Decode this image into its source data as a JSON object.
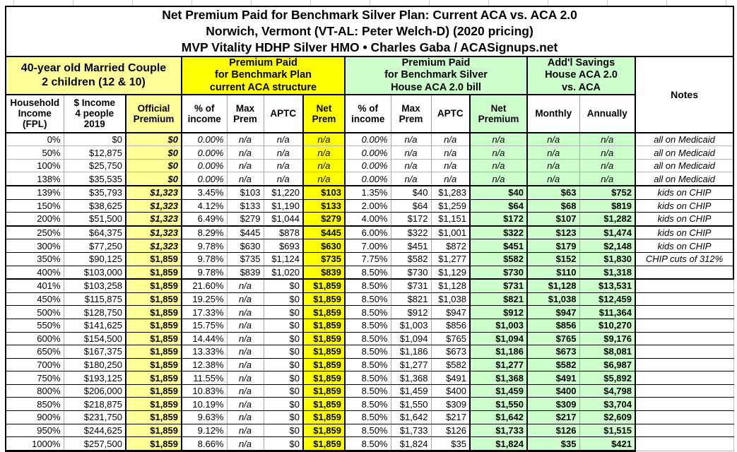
{
  "title": {
    "line1": "Net Premium Paid for Benchmark Silver Plan: Current ACA vs. ACA 2.0",
    "line2": "Norwich, Vermont (VT-AL: Peter Welch-D) (2020 pricing)",
    "line3": "MVP Vitality HDHP Silver HMO • Charles Gaba / ACASignups.net"
  },
  "groups": {
    "household": [
      "40-year old Married Couple",
      "2 children (12 & 10)"
    ],
    "current_aca": [
      "Premium Paid",
      "for Benchmark Plan",
      "current ACA structure"
    ],
    "aca20": [
      "Premium Paid",
      "for Benchmark Silver",
      "House ACA 2.0 bill"
    ],
    "savings": [
      "Add'l Savings",
      "House ACA 2.0",
      "vs. ACA"
    ],
    "notes_label": "Notes"
  },
  "colors": {
    "light_yellow": "#FFFF99",
    "bright_yellow": "#FFFF00",
    "light_green": "#CCFFCC",
    "border_black": "#000000",
    "grid_gray": "#A8A8A8"
  },
  "chart_data": {
    "type": "table",
    "title": "Net Premium Paid for Benchmark Silver Plan: Current ACA vs. ACA 2.0",
    "columns": [
      {
        "id": "fpl",
        "label": [
          "Household",
          "Income",
          "(FPL)"
        ]
      },
      {
        "id": "income",
        "label": [
          "$ Income",
          "4 people",
          "2019"
        ]
      },
      {
        "id": "official_premium",
        "label": [
          "Official",
          "Premium"
        ]
      },
      {
        "id": "aca_pct_income",
        "label": [
          "% of",
          "income"
        ]
      },
      {
        "id": "aca_max_prem",
        "label": [
          "Max",
          "Prem"
        ]
      },
      {
        "id": "aca_aptc",
        "label": [
          "APTC"
        ]
      },
      {
        "id": "aca_net_prem",
        "label": [
          "Net",
          "Prem"
        ]
      },
      {
        "id": "aca2_pct_income",
        "label": [
          "% of",
          "income"
        ]
      },
      {
        "id": "aca2_max_prem",
        "label": [
          "Max",
          "Prem"
        ]
      },
      {
        "id": "aca2_aptc",
        "label": [
          "APTC"
        ]
      },
      {
        "id": "aca2_net_premium",
        "label": [
          "Net",
          "Premium"
        ]
      },
      {
        "id": "savings_monthly",
        "label": [
          "Monthly"
        ]
      },
      {
        "id": "savings_annually",
        "label": [
          "Annually"
        ]
      },
      {
        "id": "notes",
        "label": [
          "Notes"
        ]
      }
    ],
    "row_fields": [
      "fpl",
      "income",
      "official_premium",
      "aca_pct_income",
      "aca_max_prem",
      "aca_aptc",
      "aca_net_prem",
      "aca2_pct_income",
      "aca2_max_prem",
      "aca2_aptc",
      "aca2_net_premium",
      "savings_monthly",
      "savings_annually",
      "notes"
    ],
    "rows": [
      [
        "0%",
        "$0",
        "$0",
        "0.00%",
        "n/a",
        "n/a",
        "n/a",
        "0.00%",
        "n/a",
        "n/a",
        "n/a",
        "n/a",
        "n/a",
        "all on Medicaid"
      ],
      [
        "50%",
        "$12,875",
        "$0",
        "0.00%",
        "n/a",
        "n/a",
        "n/a",
        "0.00%",
        "n/a",
        "n/a",
        "n/a",
        "n/a",
        "n/a",
        "all on Medicaid"
      ],
      [
        "100%",
        "$25,750",
        "$0",
        "0.00%",
        "n/a",
        "n/a",
        "n/a",
        "0.00%",
        "n/a",
        "n/a",
        "n/a",
        "n/a",
        "n/a",
        "all on Medicaid"
      ],
      [
        "138%",
        "$35,535",
        "$0",
        "0.00%",
        "n/a",
        "n/a",
        "n/a",
        "0.00%",
        "n/a",
        "n/a",
        "n/a",
        "n/a",
        "n/a",
        "all on Medicaid"
      ],
      [
        "139%",
        "$35,793",
        "$1,323",
        "3.45%",
        "$103",
        "$1,220",
        "$103",
        "1.35%",
        "$40",
        "$1,283",
        "$40",
        "$63",
        "$752",
        "kids on CHIP"
      ],
      [
        "150%",
        "$38,625",
        "$1,323",
        "4.12%",
        "$133",
        "$1,190",
        "$133",
        "2.00%",
        "$64",
        "$1,259",
        "$64",
        "$68",
        "$819",
        "kids on CHIP"
      ],
      [
        "200%",
        "$51,500",
        "$1,323",
        "6.49%",
        "$279",
        "$1,044",
        "$279",
        "4.00%",
        "$172",
        "$1,151",
        "$172",
        "$107",
        "$1,282",
        "kids on CHIP"
      ],
      [
        "250%",
        "$64,375",
        "$1,323",
        "8.29%",
        "$445",
        "$878",
        "$445",
        "6.00%",
        "$322",
        "$1,001",
        "$322",
        "$123",
        "$1,474",
        "kids on CHIP"
      ],
      [
        "300%",
        "$77,250",
        "$1,323",
        "9.78%",
        "$630",
        "$693",
        "$630",
        "7.00%",
        "$451",
        "$872",
        "$451",
        "$179",
        "$2,148",
        "kids on CHIP"
      ],
      [
        "350%",
        "$90,125",
        "$1,859",
        "9.78%",
        "$735",
        "$1,124",
        "$735",
        "7.75%",
        "$582",
        "$1,277",
        "$582",
        "$152",
        "$1,830",
        "CHIP cuts of 312%"
      ],
      [
        "400%",
        "$103,000",
        "$1,859",
        "9.78%",
        "$839",
        "$1,020",
        "$839",
        "8.50%",
        "$730",
        "$1,129",
        "$730",
        "$110",
        "$1,318",
        ""
      ],
      [
        "401%",
        "$103,258",
        "$1,859",
        "21.60%",
        "n/a",
        "$0",
        "$1,859",
        "8.50%",
        "$731",
        "$1,128",
        "$731",
        "$1,128",
        "$13,531",
        ""
      ],
      [
        "450%",
        "$115,875",
        "$1,859",
        "19.25%",
        "n/a",
        "$0",
        "$1,859",
        "8.50%",
        "$821",
        "$1,038",
        "$821",
        "$1,038",
        "$12,459",
        ""
      ],
      [
        "500%",
        "$128,750",
        "$1,859",
        "17.33%",
        "n/a",
        "$0",
        "$1,859",
        "8.50%",
        "$912",
        "$947",
        "$912",
        "$947",
        "$11,364",
        ""
      ],
      [
        "550%",
        "$141,625",
        "$1,859",
        "15.75%",
        "n/a",
        "$0",
        "$1,859",
        "8.50%",
        "$1,003",
        "$856",
        "$1,003",
        "$856",
        "$10,270",
        ""
      ],
      [
        "600%",
        "$154,500",
        "$1,859",
        "14.44%",
        "n/a",
        "$0",
        "$1,859",
        "8.50%",
        "$1,094",
        "$765",
        "$1,094",
        "$765",
        "$9,176",
        ""
      ],
      [
        "650%",
        "$167,375",
        "$1,859",
        "13.33%",
        "n/a",
        "$0",
        "$1,859",
        "8.50%",
        "$1,186",
        "$673",
        "$1,186",
        "$673",
        "$8,081",
        ""
      ],
      [
        "700%",
        "$180,250",
        "$1,859",
        "12.38%",
        "n/a",
        "$0",
        "$1,859",
        "8.50%",
        "$1,277",
        "$582",
        "$1,277",
        "$582",
        "$6,987",
        ""
      ],
      [
        "750%",
        "$193,125",
        "$1,859",
        "11.55%",
        "n/a",
        "$0",
        "$1,859",
        "8.50%",
        "$1,368",
        "$491",
        "$1,368",
        "$491",
        "$5,892",
        ""
      ],
      [
        "800%",
        "$206,000",
        "$1,859",
        "10.83%",
        "n/a",
        "$0",
        "$1,859",
        "8.50%",
        "$1,459",
        "$400",
        "$1,459",
        "$400",
        "$4,798",
        ""
      ],
      [
        "850%",
        "$218,875",
        "$1,859",
        "10.19%",
        "n/a",
        "$0",
        "$1,859",
        "8.50%",
        "$1,550",
        "$309",
        "$1,550",
        "$309",
        "$3,704",
        ""
      ],
      [
        "900%",
        "$231,750",
        "$1,859",
        "9.63%",
        "n/a",
        "$0",
        "$1,859",
        "8.50%",
        "$1,642",
        "$217",
        "$1,642",
        "$217",
        "$2,609",
        ""
      ],
      [
        "950%",
        "$244,625",
        "$1,859",
        "9.12%",
        "n/a",
        "$0",
        "$1,859",
        "8.50%",
        "$1,733",
        "$126",
        "$1,733",
        "$126",
        "$1,515",
        ""
      ],
      [
        "1000%",
        "$257,500",
        "$1,859",
        "8.66%",
        "n/a",
        "$0",
        "$1,859",
        "8.50%",
        "$1,824",
        "$35",
        "$1,824",
        "$35",
        "$421",
        ""
      ]
    ],
    "styles": {
      "medicaid_rows": [
        0,
        1,
        2,
        3
      ],
      "italic_official_rows": [
        0,
        1,
        2,
        3,
        4,
        5,
        6,
        7,
        8
      ],
      "group_break_after_rows": [
        3,
        6,
        10
      ],
      "dark_notes_edge_through_row": 10
    },
    "layout_hints": {
      "grid": true,
      "legend": "none"
    }
  }
}
